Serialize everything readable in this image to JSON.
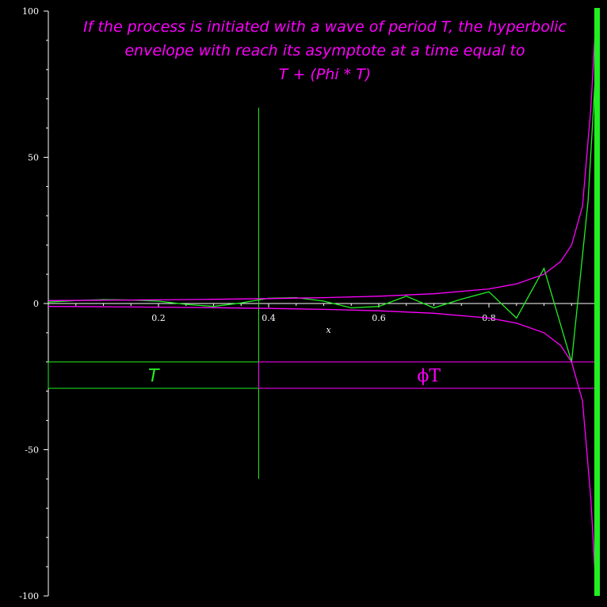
{
  "chart_data": {
    "type": "line",
    "title_lines": [
      "If the process is initiated with a wave of period T, the hyperbolic",
      "envelope with reach its asymptote at a time equal to",
      "T + (Phi * T)"
    ],
    "xlabel": "x",
    "ylabel": "",
    "xlim": [
      0,
      1
    ],
    "ylim": [
      -100,
      100
    ],
    "x_ticks": [
      0.2,
      0.4,
      0.6,
      0.8
    ],
    "x_tick_labels": [
      "0.2",
      "0.4",
      "0.6",
      "0.8"
    ],
    "y_ticks": [
      -100,
      -50,
      0,
      50,
      100
    ],
    "y_tick_labels": [
      "-100",
      "-50",
      "0",
      "50",
      "100"
    ],
    "asymptote_x": 1.0,
    "period_T": 0.382,
    "series": [
      {
        "color": "#22ee22",
        "description_values": "oscillating wave with growing amplitude approaching asymptote",
        "x": [
          0.0,
          0.05,
          0.1,
          0.15,
          0.2,
          0.25,
          0.3,
          0.35,
          0.4,
          0.45,
          0.5,
          0.55,
          0.6,
          0.65,
          0.7,
          0.75,
          0.8,
          0.85,
          0.9,
          0.95,
          0.98,
          1.0
        ],
        "y": [
          0.5,
          1.0,
          1.3,
          1.2,
          0.8,
          -0.3,
          -1.0,
          0.2,
          1.8,
          2.0,
          0.8,
          -1.5,
          -1.0,
          2.5,
          -1.5,
          1.5,
          4.0,
          -5.0,
          12.0,
          -20.0,
          35.0,
          100.0
        ]
      },
      {
        "color": "#ff00ff",
        "x": [
          0.0,
          0.1,
          0.2,
          0.3,
          0.4,
          0.5,
          0.6,
          0.7,
          0.8,
          0.85,
          0.9,
          0.93,
          0.95,
          0.97,
          0.985,
          0.995
        ],
        "y": [
          1.0,
          1.1,
          1.25,
          1.43,
          1.67,
          2.0,
          2.5,
          3.33,
          5.0,
          6.7,
          10.0,
          14.3,
          20.0,
          33.3,
          66.7,
          100.0
        ]
      },
      {
        "color": "#ff00ff",
        "x": [
          0.0,
          0.1,
          0.2,
          0.3,
          0.4,
          0.5,
          0.6,
          0.7,
          0.8,
          0.85,
          0.9,
          0.93,
          0.95,
          0.97,
          0.985,
          0.995
        ],
        "y": [
          -1.0,
          -1.1,
          -1.25,
          -1.43,
          -1.67,
          -2.0,
          -2.5,
          -3.33,
          -5.0,
          -6.7,
          -10.0,
          -14.3,
          -20.0,
          -33.3,
          -66.7,
          -100.0
        ]
      }
    ],
    "annotations": {
      "segment_T": {
        "label": "T",
        "x_from": 0.0,
        "x_to": 0.382,
        "y_from": -20,
        "y_to": -29,
        "color": "#22ee22"
      },
      "segment_phiT": {
        "label": "ϕT",
        "x_from": 0.382,
        "x_to": 1.0,
        "y_from": -20,
        "y_to": -29,
        "color": "#ff00ff"
      },
      "marker_line": {
        "x": 0.382,
        "y_from": -60,
        "y_to": 67,
        "color": "#22ee22"
      }
    },
    "grid": false,
    "legend": "none"
  }
}
